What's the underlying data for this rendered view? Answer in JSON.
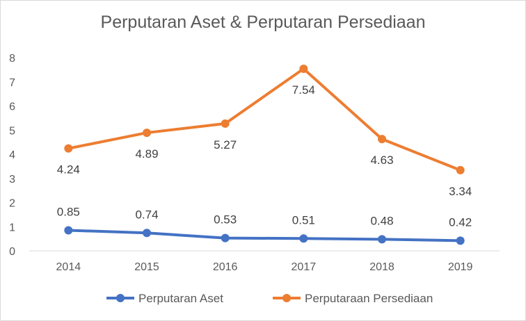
{
  "chart_data": {
    "type": "line",
    "title": "Perputaran Aset & Perputaran Persediaan",
    "categories": [
      "2014",
      "2015",
      "2016",
      "2017",
      "2018",
      "2019"
    ],
    "ylim": [
      0,
      8
    ],
    "yticks": [
      "0",
      "1",
      "2",
      "3",
      "4",
      "5",
      "6",
      "7",
      "8"
    ],
    "grid": false,
    "legend": "bottom",
    "series": [
      {
        "name": "Perputaran Aset",
        "color": "#4472c4",
        "values": [
          0.85,
          0.74,
          0.53,
          0.51,
          0.48,
          0.42
        ],
        "labels": [
          "0.85",
          "0.74",
          "0.53",
          "0.51",
          "0.48",
          "0.42"
        ]
      },
      {
        "name": "Perputaraan Persediaan",
        "color": "#ed7d31",
        "values": [
          4.24,
          4.89,
          5.27,
          7.54,
          4.63,
          3.34
        ],
        "labels": [
          "4.24",
          "4.89",
          "5.27",
          "7.54",
          "4.63",
          "3.34"
        ]
      }
    ]
  }
}
